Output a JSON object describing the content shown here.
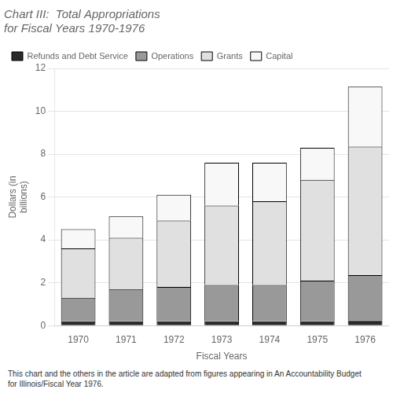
{
  "chart_data": {
    "type": "bar",
    "title": [
      "Chart III:  Total Appropriations",
      "for Fiscal Years 1970-1976"
    ],
    "xlabel": "Fiscal Years",
    "ylabel": [
      "Dollars (in",
      "billions)"
    ],
    "categories": [
      "1970",
      "1971",
      "1972",
      "1973",
      "1974",
      "1975",
      "1976"
    ],
    "series": [
      {
        "name": "Refunds and Debt Service",
        "color": "#2a2a2a",
        "values": [
          0.2,
          0.2,
          0.2,
          0.2,
          0.2,
          0.2,
          0.25
        ]
      },
      {
        "name": "Operations",
        "color": "#999999",
        "values": [
          1.1,
          1.5,
          1.6,
          1.7,
          1.7,
          1.9,
          2.1
        ]
      },
      {
        "name": "Grants",
        "color": "#e0e0e0",
        "values": [
          2.3,
          2.4,
          3.1,
          3.7,
          3.9,
          4.7,
          6.0
        ]
      },
      {
        "name": "Capital",
        "color": "#f8f8f8",
        "values": [
          0.9,
          1.0,
          1.2,
          2.0,
          1.8,
          1.5,
          2.8
        ]
      }
    ],
    "stacked": true,
    "ylim": [
      0,
      12
    ],
    "yticks": [
      0,
      2,
      4,
      6,
      8,
      10,
      12
    ],
    "grid": true,
    "legend": "upper left",
    "annotations": [
      "This chart and the others in the article are adapted from figures appearing in An Accountability Budget",
      "for Illinois/Fiscal Year 1976."
    ]
  }
}
